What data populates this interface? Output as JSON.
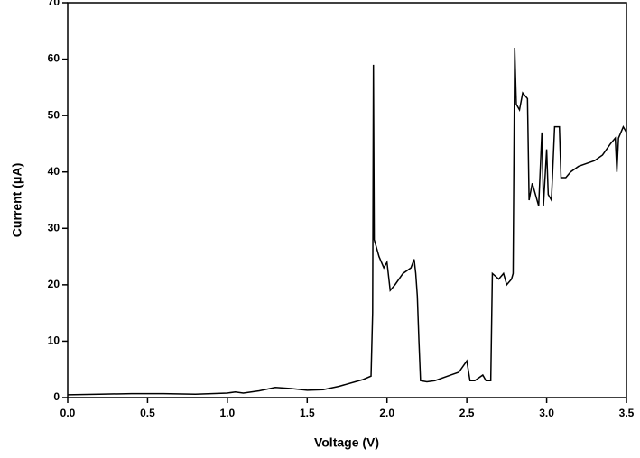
{
  "chart_data": {
    "type": "line",
    "x_label": "Voltage (V)",
    "y_label": "Current (μA)",
    "xlim": [
      0,
      3.5
    ],
    "ylim": [
      0,
      70
    ],
    "xticks": [
      {
        "value": 0,
        "label": "0.0"
      },
      0.5,
      {
        "value": 1,
        "label": "1.0"
      },
      1.5,
      {
        "value": 2,
        "label": "2.0"
      },
      2.5,
      {
        "value": 3,
        "label": "3.0"
      },
      3.5
    ],
    "yticks": [
      0,
      10,
      20,
      30,
      40,
      50,
      60,
      70
    ],
    "series": [
      {
        "color": "#000000",
        "x": [
          0,
          0.2,
          0.4,
          0.6,
          0.8,
          1.0,
          1.05,
          1.1,
          1.2,
          1.3,
          1.4,
          1.5,
          1.6,
          1.7,
          1.8,
          1.85,
          1.9,
          1.91,
          1.915,
          1.92,
          1.93,
          1.95,
          1.98,
          2.0,
          2.02,
          2.05,
          2.1,
          2.15,
          2.17,
          2.18,
          2.19,
          2.2,
          2.21,
          2.25,
          2.3,
          2.4,
          2.45,
          2.5,
          2.52,
          2.55,
          2.6,
          2.62,
          2.65,
          2.66,
          2.7,
          2.73,
          2.75,
          2.78,
          2.79,
          2.8,
          2.81,
          2.83,
          2.85,
          2.88,
          2.89,
          2.91,
          2.93,
          2.95,
          2.97,
          2.98,
          3.0,
          3.01,
          3.03,
          3.05,
          3.08,
          3.09,
          3.12,
          3.15,
          3.2,
          3.25,
          3.3,
          3.35,
          3.4,
          3.43,
          3.44,
          3.45,
          3.48,
          3.5
        ],
        "values": [
          0.5,
          0.6,
          0.7,
          0.7,
          0.6,
          0.8,
          1.0,
          0.8,
          1.2,
          1.8,
          1.6,
          1.3,
          1.4,
          2.0,
          2.8,
          3.2,
          3.8,
          15,
          59,
          28,
          27,
          25,
          23,
          24,
          19,
          20,
          22,
          23,
          24.5,
          22,
          18,
          10,
          3,
          2.8,
          3.0,
          4,
          4.5,
          6.5,
          3,
          3,
          4,
          3,
          3,
          22,
          21,
          22,
          20,
          21,
          22,
          62,
          52,
          51,
          54,
          53,
          35,
          38,
          36,
          34,
          47,
          34,
          44,
          36,
          35,
          48,
          48,
          39,
          39,
          40,
          41,
          41.5,
          42,
          43,
          45,
          46,
          40,
          46,
          48,
          47
        ]
      }
    ]
  }
}
